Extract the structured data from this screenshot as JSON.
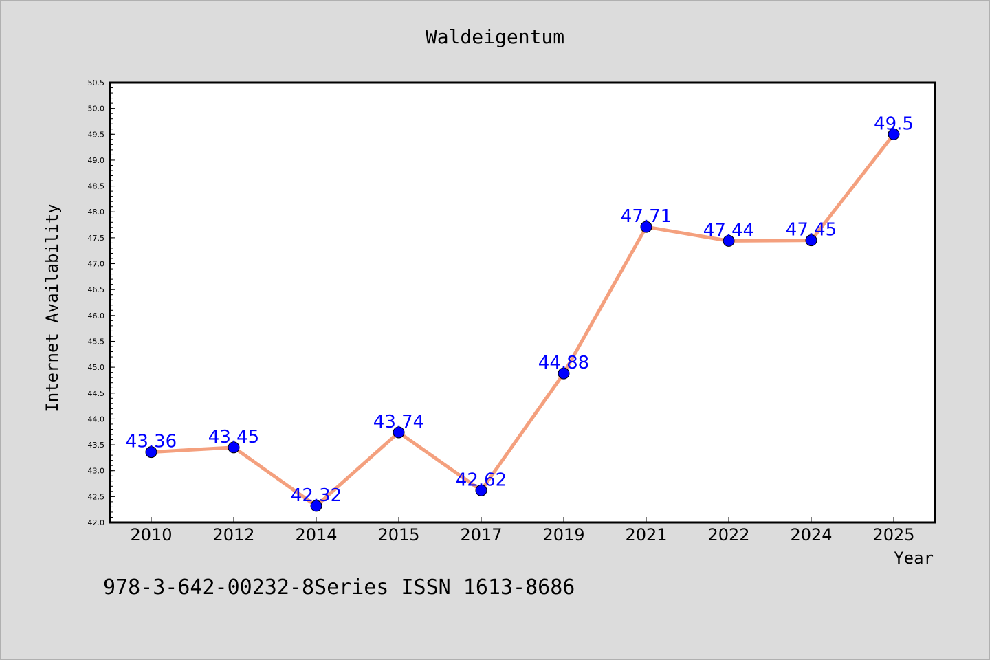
{
  "chart_data": {
    "type": "line",
    "title": "Waldeigentum",
    "xlabel": "Year",
    "ylabel": "Internet Availability",
    "x": [
      "2010",
      "2012",
      "2014",
      "2015",
      "2017",
      "2019",
      "2021",
      "2022",
      "2024",
      "2025"
    ],
    "series": [
      {
        "values": [
          43.36,
          43.45,
          42.32,
          43.74,
          42.62,
          44.88,
          47.71,
          47.44,
          47.45,
          49.5
        ]
      }
    ],
    "data_labels": [
      "43.36",
      "43.45",
      "42.32",
      "43.74",
      "42.62",
      "44.88",
      "47.71",
      "47.44",
      "47.45",
      "49.5"
    ],
    "ylim": [
      42.0,
      50.5
    ],
    "yticks": [
      "42.0",
      "42.5",
      "43.0",
      "43.5",
      "44.0",
      "44.5",
      "45.0",
      "45.5",
      "46.0",
      "46.5",
      "47.0",
      "47.5",
      "48.0",
      "48.5",
      "49.0",
      "49.5",
      "50.0",
      "50.5"
    ],
    "grid": false,
    "line_color": "#f4a07e",
    "marker_color": "#0000ff",
    "label_color": "#0000ff",
    "background_color": "#dcdcdc",
    "plot_background": "#ffffff"
  },
  "footer": {
    "text": "978-3-642-00232-8Series ISSN 1613-8686"
  }
}
